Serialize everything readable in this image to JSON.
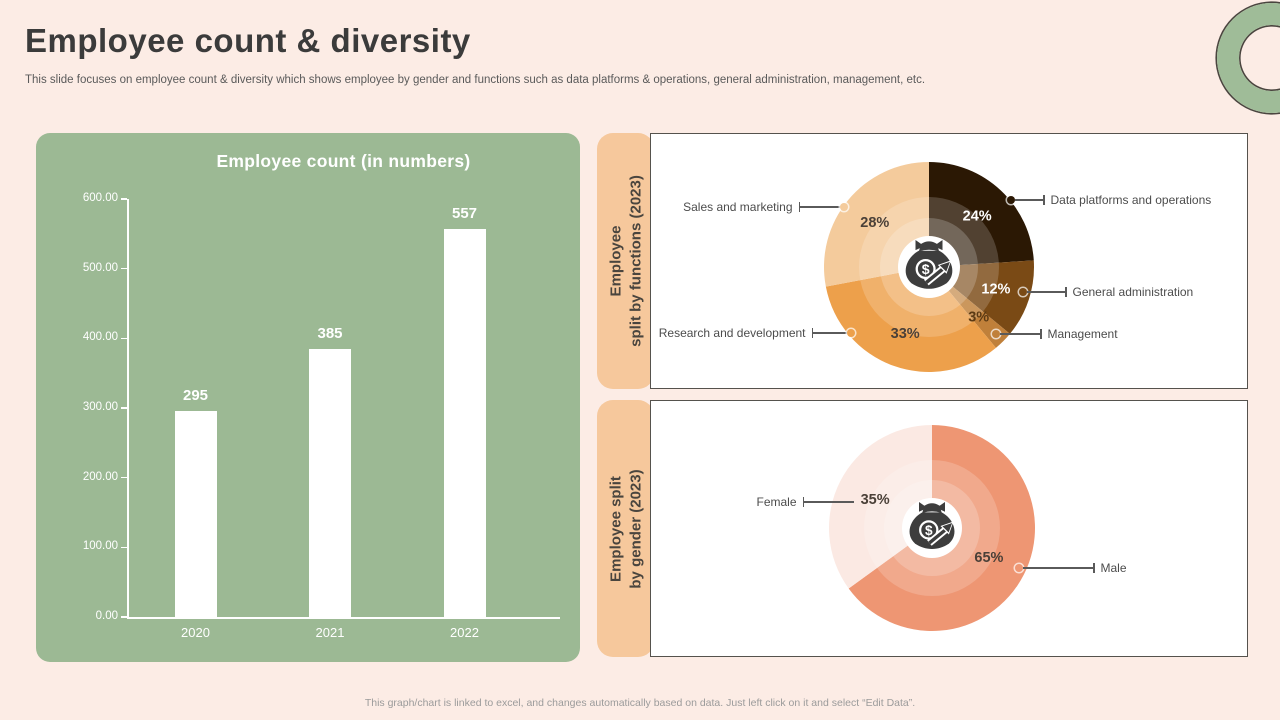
{
  "slide": {
    "title": "Employee count & diversity",
    "subtitle": "This slide focuses on employee count & diversity which shows employee by gender and functions such as data platforms & operations, general administration, management, etc.",
    "footer": "This graph/chart is linked to excel, and changes automatically based on data. Just left click on it and select “Edit Data”."
  },
  "colors": {
    "background": "#fcece5",
    "bar_panel_green": "#9cb994",
    "bar_fill": "#ffffff",
    "pill_peach": "#f6c89c",
    "panel_border": "#55524d",
    "ring_green": "#9fbc98",
    "title_text": "#3b3b3b",
    "callout_text": "#4c4c4c",
    "icon_dark": "#3d3d3d"
  },
  "chart_data": [
    {
      "id": "employee_count",
      "type": "bar",
      "title": "Employee count (in numbers)",
      "categories": [
        "2020",
        "2021",
        "2022"
      ],
      "values": [
        295,
        385,
        557
      ],
      "value_labels": [
        "295",
        "385",
        "557"
      ],
      "ylim": [
        0,
        600
      ],
      "yticks": [
        "600.00",
        "500.00",
        "400.00",
        "300.00",
        "200.00",
        "100.00",
        "0.00"
      ],
      "xlabel": "",
      "ylabel": "",
      "grid": false,
      "legend": false,
      "bar_color": "#ffffff"
    },
    {
      "id": "employee_split_by_functions",
      "type": "pie",
      "panel_label": [
        "Employee",
        "split by functions (2023)"
      ],
      "start_angle_deg": 0,
      "direction": "clockwise",
      "slices": [
        {
          "label": "Data platforms and operations",
          "value": 24,
          "pct": "24%",
          "color": "#2b1804",
          "pct_color": "#ffffff"
        },
        {
          "label": "General administration",
          "value": 12,
          "pct": "12%",
          "color": "#7a4a15",
          "pct_color": "#ffffff"
        },
        {
          "label": "Management",
          "value": 3,
          "pct": "3%",
          "color": "#c0803a",
          "pct_color": "#5b3a14"
        },
        {
          "label": "Research and development",
          "value": 33,
          "pct": "33%",
          "color": "#eda04b",
          "pct_color": "#4a4038"
        },
        {
          "label": "Sales and marketing",
          "value": 28,
          "pct": "28%",
          "color": "#f4cb9c",
          "pct_color": "#4a4038"
        }
      ]
    },
    {
      "id": "employee_split_by_gender",
      "type": "pie",
      "panel_label": [
        "Employee split",
        "by gender (2023)"
      ],
      "start_angle_deg": 0,
      "direction": "clockwise",
      "slices": [
        {
          "label": "Male",
          "value": 65,
          "pct": "65%",
          "color": "#ee9673",
          "pct_color": "#4a4038"
        },
        {
          "label": "Female",
          "value": 35,
          "pct": "35%",
          "color": "#fbe9e3",
          "pct_color": "#4a4038"
        }
      ]
    }
  ]
}
